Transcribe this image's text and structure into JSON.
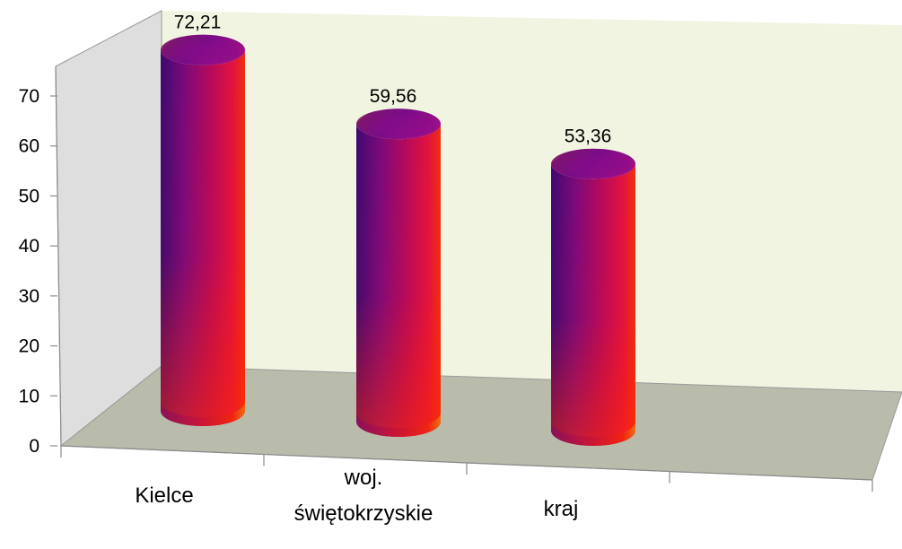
{
  "chart_data": {
    "type": "bar",
    "style": "3d-cylinder",
    "categories": [
      "Kielce",
      "woj. świętokrzyskie",
      "kraj"
    ],
    "category_lines": [
      [
        "Kielce"
      ],
      [
        "woj.",
        "świętokrzyskie"
      ],
      [
        "kraj"
      ]
    ],
    "values": [
      72.21,
      59.56,
      53.36
    ],
    "value_labels": [
      "72,21",
      "59,56",
      "53,36"
    ],
    "ylim": [
      0,
      70
    ],
    "yticks": [
      0,
      10,
      20,
      30,
      40,
      50,
      60,
      70
    ],
    "grid": false,
    "legend": "none",
    "title": "",
    "xlabel": "",
    "ylabel": ""
  },
  "colors": {
    "back_wall": "#f1f4e0",
    "side_wall": "#dedede",
    "floor": "#b9bcaa",
    "wall_edge": "#9a9a9a",
    "cylinder_dark": "#4b0a78",
    "cylinder_mid": "#a3085e",
    "cylinder_hot": "#e8140f",
    "cylinder_rim": "#e9b21c"
  }
}
